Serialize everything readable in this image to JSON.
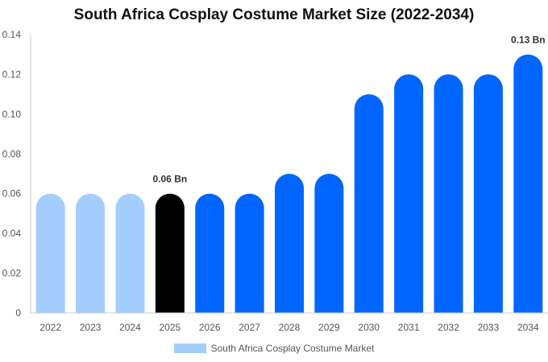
{
  "chart_data": {
    "type": "bar",
    "title": "South Africa Cosplay Costume Market Size (2022-2034)",
    "categories": [
      "2022",
      "2023",
      "2024",
      "2025",
      "2026",
      "2027",
      "2028",
      "2029",
      "2030",
      "2031",
      "2032",
      "2033",
      "2034"
    ],
    "series": [
      {
        "name": "South Africa Cosplay Costume Market",
        "values": [
          0.06,
          0.06,
          0.06,
          0.06,
          0.06,
          0.06,
          0.07,
          0.07,
          0.11,
          0.12,
          0.12,
          0.12,
          0.13
        ]
      }
    ],
    "bar_colors": [
      "#a3cdfc",
      "#a3cdfc",
      "#a3cdfc",
      "#000000",
      "#0066ff",
      "#0066ff",
      "#0066ff",
      "#0066ff",
      "#0066ff",
      "#0066ff",
      "#0066ff",
      "#0066ff",
      "#0066ff"
    ],
    "data_labels": [
      {
        "category": "2025",
        "text": "0.06 Bn"
      },
      {
        "category": "2034",
        "text": "0.13 Bn"
      }
    ],
    "y_ticks": [
      "0",
      "0.02",
      "0.04",
      "0.06",
      "0.08",
      "0.10",
      "0.12",
      "0.14"
    ],
    "ylim": [
      0,
      0.14
    ],
    "xlabel": "",
    "ylabel": "",
    "grid": false,
    "legend_position": "bottom"
  }
}
